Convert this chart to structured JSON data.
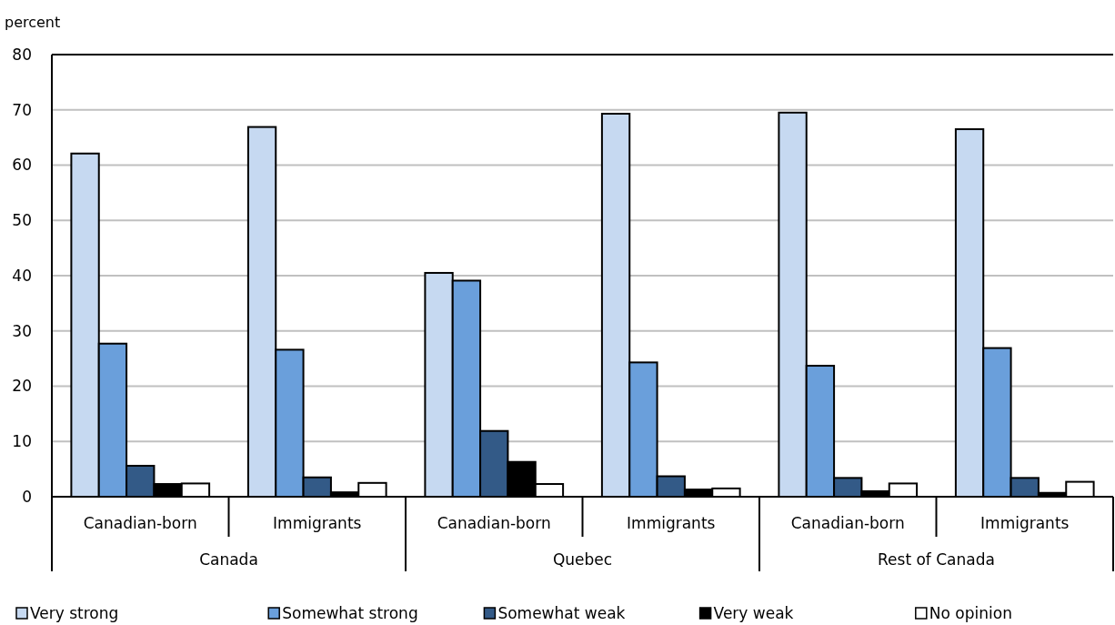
{
  "chart_data": {
    "type": "bar",
    "ylabel": "percent",
    "categories": [
      "Canadian-born",
      "Immigrants",
      "Canadian-born",
      "Immigrants",
      "Canadian-born",
      "Immigrants"
    ],
    "annotations": [
      "Canada",
      "Quebec",
      "Rest of Canada"
    ],
    "series": [
      {
        "name": "Very strong",
        "color": "#c6d9f1",
        "values": [
          62.1,
          66.9,
          40.5,
          69.3,
          69.5,
          66.5
        ]
      },
      {
        "name": "Somewhat strong",
        "color": "#6a9fdb",
        "values": [
          27.7,
          26.6,
          39.1,
          24.3,
          23.7,
          26.9
        ]
      },
      {
        "name": "Somewhat weak",
        "color": "#335a87",
        "values": [
          5.6,
          3.5,
          11.9,
          3.7,
          3.4,
          3.4
        ]
      },
      {
        "name": "Very weak",
        "color": "#000000",
        "values": [
          2.3,
          0.8,
          6.3,
          1.3,
          1.0,
          0.7
        ]
      },
      {
        "name": "No opinion",
        "color": "#ffffff",
        "values": [
          2.4,
          2.5,
          2.3,
          1.5,
          2.4,
          2.7
        ]
      }
    ],
    "ylim": [
      0,
      80
    ],
    "yticks": [
      0,
      10,
      20,
      30,
      40,
      50,
      60,
      70,
      80
    ],
    "grid": "y",
    "legend": "bottom"
  }
}
